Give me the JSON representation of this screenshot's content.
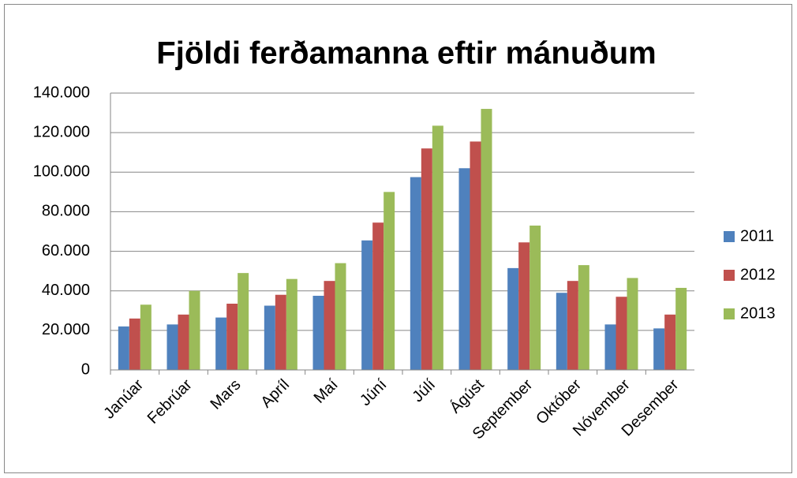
{
  "chart_data": {
    "type": "bar",
    "title": "Fjöldi ferðamanna eftir mánuðum",
    "categories": [
      "Janúar",
      "Febrúar",
      "Mars",
      "Apríl",
      "Maí",
      "Júní",
      "Júlí",
      "Ágúst",
      "September",
      "Október",
      "Nóvember",
      "Desember"
    ],
    "series": [
      {
        "name": "2011",
        "color": "#4f81bd",
        "values": [
          22000,
          23000,
          26500,
          32500,
          37500,
          65500,
          97500,
          102000,
          51500,
          39000,
          23000,
          21000
        ]
      },
      {
        "name": "2012",
        "color": "#c0504d",
        "values": [
          26000,
          28000,
          33500,
          38000,
          45000,
          74500,
          112000,
          115500,
          64500,
          45000,
          37000,
          28000
        ]
      },
      {
        "name": "2013",
        "color": "#9bbb59",
        "values": [
          33000,
          40000,
          49000,
          46000,
          54000,
          90000,
          123500,
          132000,
          73000,
          53000,
          46500,
          41500
        ]
      }
    ],
    "ylim": [
      0,
      140000
    ],
    "yticks": [
      0,
      {
        "value": 20000,
        "label": "20.000"
      },
      {
        "value": 40000,
        "label": "40.000"
      },
      {
        "value": 60000,
        "label": "60.000"
      },
      {
        "value": 80000,
        "label": "80.000"
      },
      {
        "value": 100000,
        "label": "100.000"
      },
      {
        "value": 120000,
        "label": "120.000"
      },
      {
        "value": 140000,
        "label": "140.000"
      }
    ],
    "grid": true,
    "legend": "right"
  }
}
